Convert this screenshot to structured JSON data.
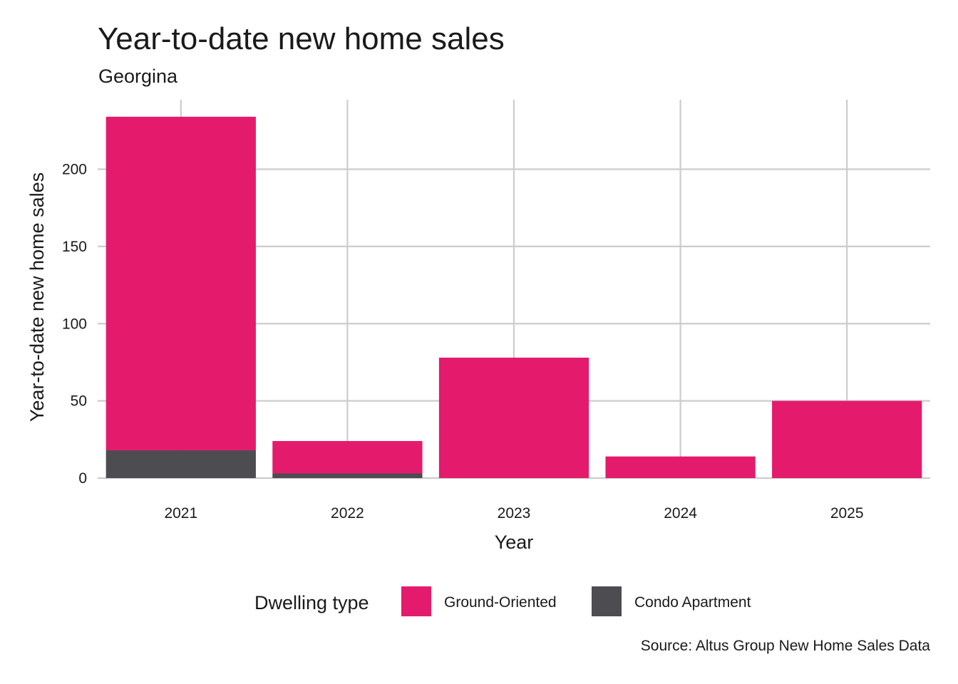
{
  "chart_data": {
    "type": "bar",
    "stacked": true,
    "title": "Year-to-date new home sales",
    "subtitle": "Georgina",
    "xlabel": "Year",
    "ylabel": "Year-to-date new home sales",
    "caption": "Source: Altus Group New Home Sales Data",
    "categories": [
      "2021",
      "2022",
      "2023",
      "2024",
      "2025"
    ],
    "series": [
      {
        "name": "Condo Apartment",
        "color": "#4d4c50",
        "values": [
          18,
          3,
          0,
          0,
          0
        ]
      },
      {
        "name": "Ground-Oriented",
        "color": "#e41b6c",
        "values": [
          216,
          21,
          78,
          14,
          50
        ]
      }
    ],
    "ylim": [
      0,
      245
    ],
    "yticks": [
      "0",
      "50",
      "100",
      "150",
      "200"
    ],
    "grid": true,
    "legend": {
      "title": "Dwelling type",
      "position": "bottom",
      "entries": [
        "Ground-Oriented",
        "Condo Apartment"
      ]
    }
  }
}
